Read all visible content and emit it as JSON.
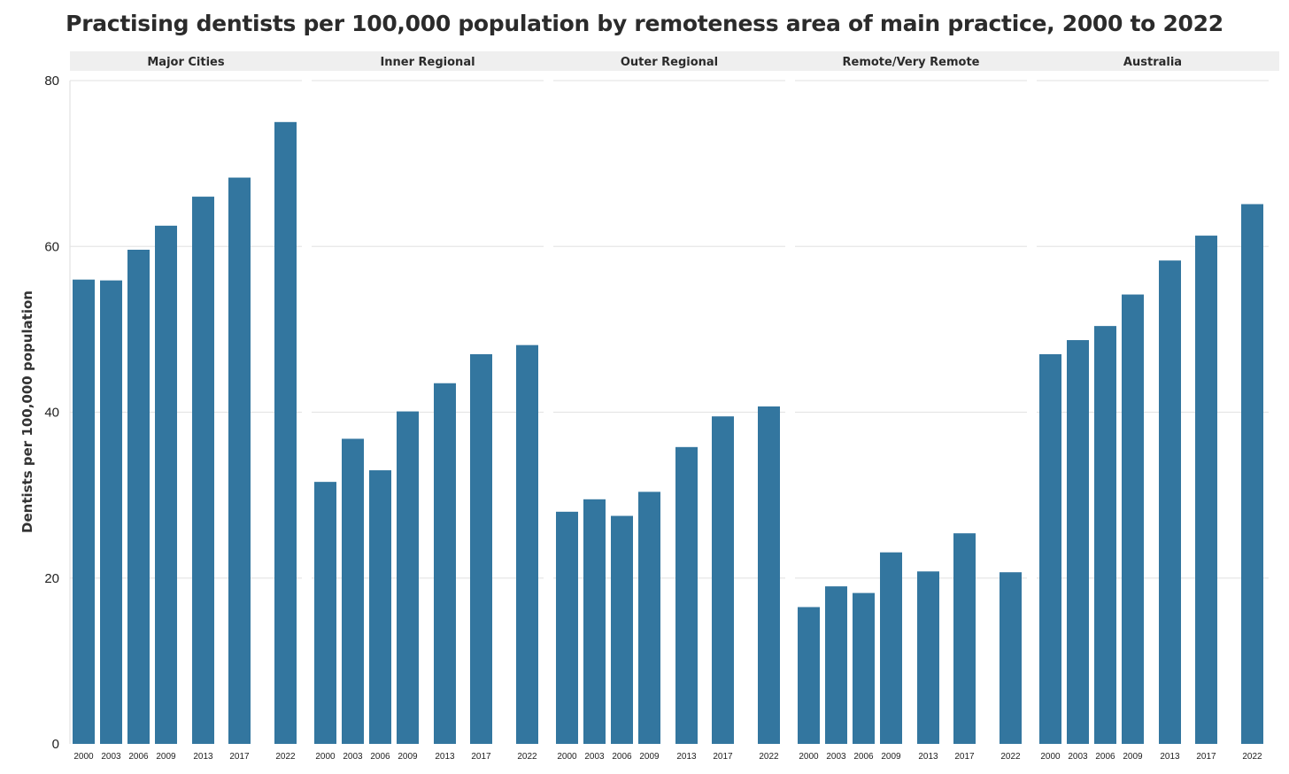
{
  "chart_data": {
    "type": "bar",
    "title": "Practising dentists per 100,000 population by remoteness area of main practice, 2000 to 2022",
    "ylabel": "Dentists per 100,000 population",
    "xlabel": "",
    "ylim": [
      0,
      80
    ],
    "yticks": [
      "0",
      "20",
      "40",
      "60",
      "80"
    ],
    "grid": true,
    "bar_color": "#33769f",
    "categories": [
      "2000",
      "2003",
      "2006",
      "2009",
      "2013",
      "2017",
      "2022"
    ],
    "facets": [
      {
        "name": "Major Cities",
        "values": [
          56.0,
          55.9,
          59.6,
          62.5,
          66.0,
          68.3,
          75.0
        ]
      },
      {
        "name": "Inner Regional",
        "values": [
          31.6,
          36.8,
          33.0,
          40.1,
          43.5,
          47.0,
          48.1
        ]
      },
      {
        "name": "Outer Regional",
        "values": [
          28.0,
          29.5,
          27.5,
          30.4,
          35.8,
          39.5,
          40.7
        ]
      },
      {
        "name": "Remote/Very Remote",
        "values": [
          16.5,
          19.0,
          18.2,
          23.1,
          20.8,
          25.4,
          20.7
        ]
      },
      {
        "name": "Australia",
        "values": [
          47.0,
          48.7,
          50.4,
          54.2,
          58.3,
          61.3,
          65.1
        ]
      }
    ]
  }
}
